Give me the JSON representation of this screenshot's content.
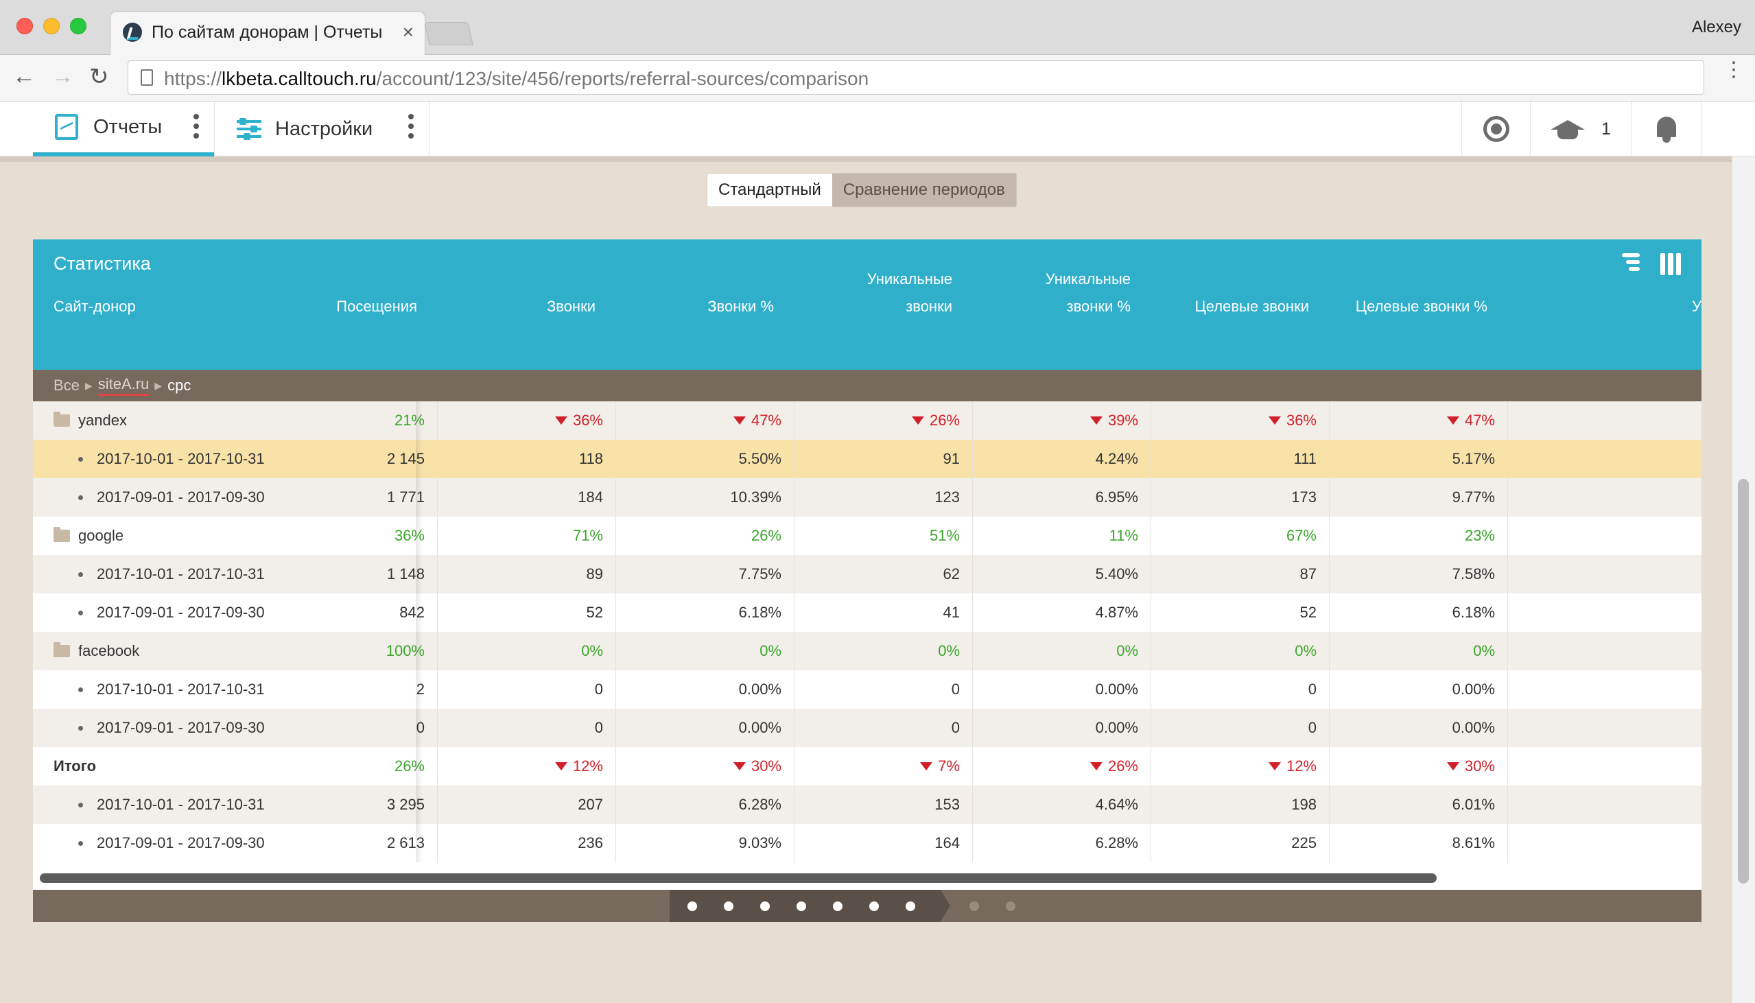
{
  "browser": {
    "tab_title": "По сайтам донорам | Отчеты",
    "tab_close": "×",
    "user": "Alexey",
    "back": "←",
    "forward": "→",
    "reload": "↻",
    "menu": "⋮",
    "url_prefix": "https://",
    "url_host": "lkbeta.calltouch.ru",
    "url_path": "/account/123/site/456/reports/referral-sources/comparison"
  },
  "nav": {
    "reports_label": "Отчеты",
    "settings_label": "Настройки",
    "edu_count": "1"
  },
  "view_toggle": {
    "standard": "Стандартный",
    "compare": "Сравнение периодов"
  },
  "table": {
    "title": "Статистика",
    "columns": {
      "source": "Сайт-донор",
      "visits": "Посещения",
      "calls": "Звонки",
      "calls_pct": "Звонки %",
      "unique_calls_l1": "Уникальные",
      "unique_calls_l2": "звонки",
      "unique_calls_pct_l1": "Уникальные",
      "unique_calls_pct_l2": "звонки %",
      "target_calls": "Целевые звонки",
      "target_calls_pct": "Целевые звонки %",
      "cut_off": "У"
    },
    "breadcrumb": {
      "all": "Все",
      "site": "siteA.ru",
      "current": "cpc",
      "sep": "▶"
    },
    "rows": [
      {
        "type": "group",
        "name": "yandex",
        "cells": [
          [
            "21%",
            "pos"
          ],
          [
            "36%",
            "neg"
          ],
          [
            "47%",
            "neg"
          ],
          [
            "26%",
            "neg"
          ],
          [
            "39%",
            "neg"
          ],
          [
            "36%",
            "neg"
          ],
          [
            "47%",
            "neg"
          ]
        ]
      },
      {
        "type": "period",
        "name": "2017-10-01 - 2017-10-31",
        "highlight": true,
        "cells": [
          [
            "2 145",
            ""
          ],
          [
            "118",
            ""
          ],
          [
            "5.50%",
            ""
          ],
          [
            "91",
            ""
          ],
          [
            "4.24%",
            ""
          ],
          [
            "111",
            ""
          ],
          [
            "5.17%",
            ""
          ]
        ]
      },
      {
        "type": "period",
        "name": "2017-09-01 - 2017-09-30",
        "cells": [
          [
            "1 771",
            ""
          ],
          [
            "184",
            ""
          ],
          [
            "10.39%",
            ""
          ],
          [
            "123",
            ""
          ],
          [
            "6.95%",
            ""
          ],
          [
            "173",
            ""
          ],
          [
            "9.77%",
            ""
          ]
        ]
      },
      {
        "type": "group",
        "name": "google",
        "cells": [
          [
            "36%",
            "pos"
          ],
          [
            "71%",
            "pos"
          ],
          [
            "26%",
            "pos"
          ],
          [
            "51%",
            "pos"
          ],
          [
            "11%",
            "pos"
          ],
          [
            "67%",
            "pos"
          ],
          [
            "23%",
            "pos"
          ]
        ]
      },
      {
        "type": "period",
        "name": "2017-10-01 - 2017-10-31",
        "cells": [
          [
            "1 148",
            ""
          ],
          [
            "89",
            ""
          ],
          [
            "7.75%",
            ""
          ],
          [
            "62",
            ""
          ],
          [
            "5.40%",
            ""
          ],
          [
            "87",
            ""
          ],
          [
            "7.58%",
            ""
          ]
        ]
      },
      {
        "type": "period",
        "name": "2017-09-01 - 2017-09-30",
        "cells": [
          [
            "842",
            ""
          ],
          [
            "52",
            ""
          ],
          [
            "6.18%",
            ""
          ],
          [
            "41",
            ""
          ],
          [
            "4.87%",
            ""
          ],
          [
            "52",
            ""
          ],
          [
            "6.18%",
            ""
          ]
        ]
      },
      {
        "type": "group",
        "name": "facebook",
        "cells": [
          [
            "100%",
            "pos"
          ],
          [
            "0%",
            "pos"
          ],
          [
            "0%",
            "pos"
          ],
          [
            "0%",
            "pos"
          ],
          [
            "0%",
            "pos"
          ],
          [
            "0%",
            "pos"
          ],
          [
            "0%",
            "pos"
          ]
        ]
      },
      {
        "type": "period",
        "name": "2017-10-01 - 2017-10-31",
        "cells": [
          [
            "2",
            ""
          ],
          [
            "0",
            ""
          ],
          [
            "0.00%",
            ""
          ],
          [
            "0",
            ""
          ],
          [
            "0.00%",
            ""
          ],
          [
            "0",
            ""
          ],
          [
            "0.00%",
            ""
          ]
        ]
      },
      {
        "type": "period",
        "name": "2017-09-01 - 2017-09-30",
        "cells": [
          [
            "0",
            ""
          ],
          [
            "0",
            ""
          ],
          [
            "0.00%",
            ""
          ],
          [
            "0",
            ""
          ],
          [
            "0.00%",
            ""
          ],
          [
            "0",
            ""
          ],
          [
            "0.00%",
            ""
          ]
        ]
      },
      {
        "type": "total",
        "name": "Итого",
        "cells": [
          [
            "26%",
            "pos"
          ],
          [
            "12%",
            "neg"
          ],
          [
            "30%",
            "neg"
          ],
          [
            "7%",
            "neg"
          ],
          [
            "26%",
            "neg"
          ],
          [
            "12%",
            "neg"
          ],
          [
            "30%",
            "neg"
          ]
        ]
      },
      {
        "type": "period",
        "name": "2017-10-01 - 2017-10-31",
        "cells": [
          [
            "3 295",
            ""
          ],
          [
            "207",
            ""
          ],
          [
            "6.28%",
            ""
          ],
          [
            "153",
            ""
          ],
          [
            "4.64%",
            ""
          ],
          [
            "198",
            ""
          ],
          [
            "6.01%",
            ""
          ]
        ]
      },
      {
        "type": "period",
        "name": "2017-09-01 - 2017-09-30",
        "cells": [
          [
            "2 613",
            ""
          ],
          [
            "236",
            ""
          ],
          [
            "9.03%",
            ""
          ],
          [
            "164",
            ""
          ],
          [
            "6.28%",
            ""
          ],
          [
            "225",
            ""
          ],
          [
            "8.61%",
            ""
          ]
        ]
      }
    ],
    "pager": {
      "total_pages": 9,
      "filled_pages": 7
    }
  },
  "colors": {
    "accent": "#30afcb",
    "positive": "#3aa62a",
    "negative": "#d0202a",
    "highlight_row": "#f8e2a8",
    "breadcrumb_bar": "#776a5d"
  }
}
